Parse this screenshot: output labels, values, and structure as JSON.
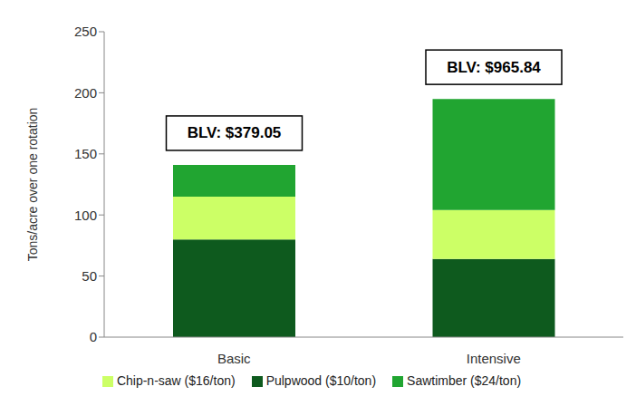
{
  "chart_data": {
    "type": "bar",
    "stacked": true,
    "categories": [
      "Basic",
      "Intensive"
    ],
    "series": [
      {
        "name": "Pulpwood ($10/ton)",
        "color": "#0e5a1e",
        "values": [
          80,
          64
        ]
      },
      {
        "name": "Chip-n-saw ($16/ton)",
        "color": "#ccff66",
        "values": [
          35,
          40
        ]
      },
      {
        "name": "Sawtimber ($24/ton)",
        "color": "#21a531",
        "values": [
          26,
          91
        ]
      }
    ],
    "y_label": "Tons/acre over one rotation",
    "ylim": [
      0,
      250
    ],
    "yticks": [
      0,
      50,
      100,
      150,
      200,
      250
    ],
    "grid": false,
    "legend": "bottom",
    "annotations": [
      {
        "category": "Basic",
        "text": "BLV: $379.05"
      },
      {
        "category": "Intensive",
        "text": "BLV: $965.84"
      }
    ]
  }
}
